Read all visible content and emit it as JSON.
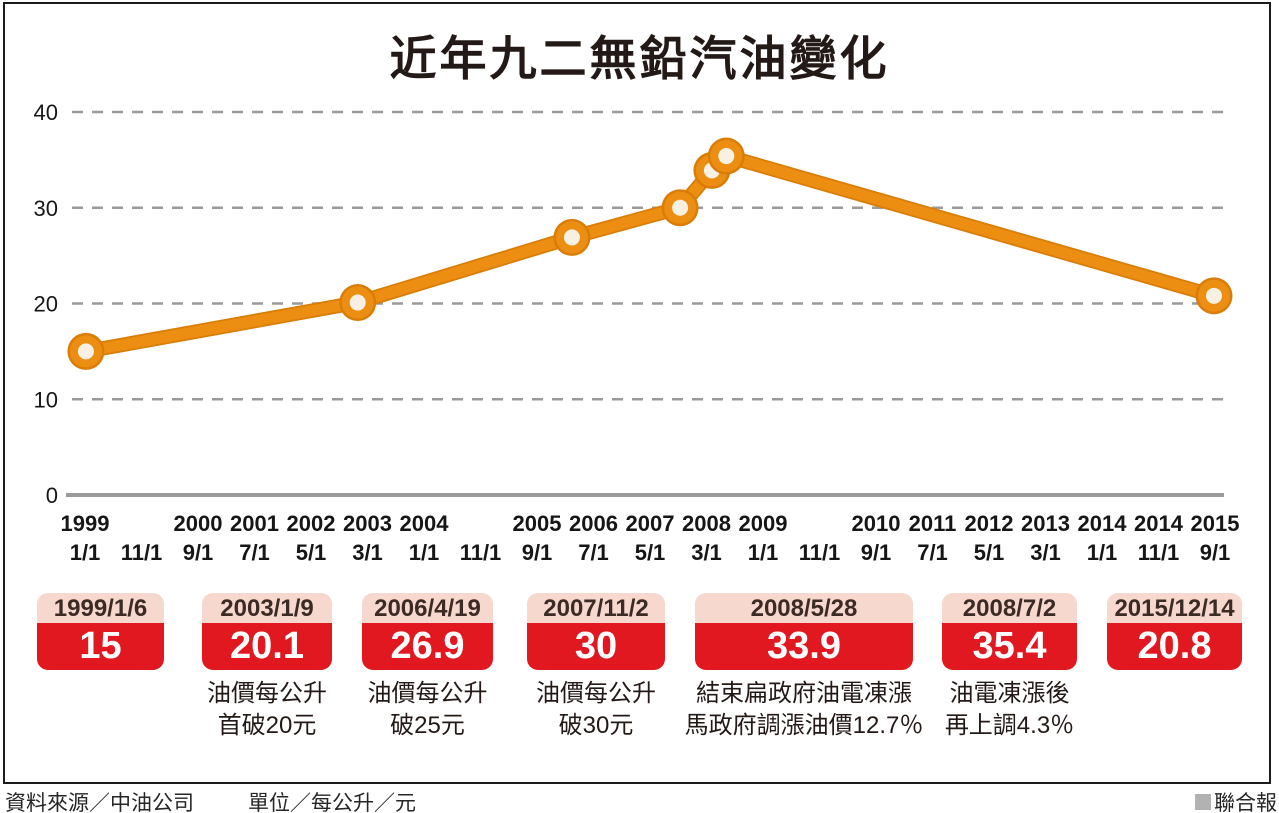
{
  "chart_data": {
    "type": "line",
    "title": "近年九二無鉛汽油變化",
    "xlabel": "",
    "ylabel": "",
    "unit": "每公升／元",
    "ylim": [
      0,
      40
    ],
    "yticks": [
      0,
      10,
      20,
      30,
      40
    ],
    "grid": "dashed horizontal gridlines, solid baseline at 0",
    "legend": "none",
    "xticks": [
      {
        "year": "1999",
        "date": "1/1"
      },
      {
        "year": "",
        "date": "11/1"
      },
      {
        "year": "2000",
        "date": "9/1"
      },
      {
        "year": "2001",
        "date": "7/1"
      },
      {
        "year": "2002",
        "date": "5/1"
      },
      {
        "year": "2003",
        "date": "3/1"
      },
      {
        "year": "2004",
        "date": "1/1"
      },
      {
        "year": "",
        "date": "11/1"
      },
      {
        "year": "2005",
        "date": "9/1"
      },
      {
        "year": "2006",
        "date": "7/1"
      },
      {
        "year": "2007",
        "date": "5/1"
      },
      {
        "year": "2008",
        "date": "3/1"
      },
      {
        "year": "2009",
        "date": "1/1"
      },
      {
        "year": "",
        "date": "11/1"
      },
      {
        "year": "2010",
        "date": "9/1"
      },
      {
        "year": "2011",
        "date": "7/1"
      },
      {
        "year": "2012",
        "date": "5/1"
      },
      {
        "year": "2013",
        "date": "3/1"
      },
      {
        "year": "2014",
        "date": "1/1"
      },
      {
        "year": "2014",
        "date": "11/1"
      },
      {
        "year": "2015",
        "date": "9/1"
      }
    ],
    "points": [
      {
        "date": "1999/1/6",
        "value": 15
      },
      {
        "date": "2003/1/9",
        "value": 20.1
      },
      {
        "date": "2006/4/19",
        "value": 26.9
      },
      {
        "date": "2007/11/2",
        "value": 30
      },
      {
        "date": "2008/5/28",
        "value": 33.9
      },
      {
        "date": "2008/7/2",
        "value": 35.4
      },
      {
        "date": "2015/12/14",
        "value": 20.8
      }
    ]
  },
  "annotations": [
    {
      "date": "1999/1/6",
      "value": "15",
      "caption": []
    },
    {
      "date": "2003/1/9",
      "value": "20.1",
      "caption": [
        "油價每公升",
        "首破20元"
      ]
    },
    {
      "date": "2006/4/19",
      "value": "26.9",
      "caption": [
        "油價每公升",
        "破25元"
      ]
    },
    {
      "date": "2007/11/2",
      "value": "30",
      "caption": [
        "油價每公升",
        "破30元"
      ]
    },
    {
      "date": "2008/5/28",
      "value": "33.9",
      "caption": [
        "結束扁政府油電凍漲",
        "馬政府調漲油價12.7％"
      ]
    },
    {
      "date": "2008/7/2",
      "value": "35.4",
      "caption": [
        "油電凍漲後",
        "再上調4.3％"
      ]
    },
    {
      "date": "2015/12/14",
      "value": "20.8",
      "caption": []
    }
  ],
  "footer": {
    "source": "資料來源／中油公司",
    "unit": "單位／每公升／元",
    "credit": "聯合報"
  },
  "colors": {
    "line": "#EC8E12",
    "line_outline": "#DA7D06",
    "marker_fill": "#F8F0E2",
    "badge_red": "#E11820",
    "badge_pink": "#F6D8CE",
    "grid": "#9A9A9A",
    "credit_square": "#B2B2B2",
    "text": "#231916"
  }
}
